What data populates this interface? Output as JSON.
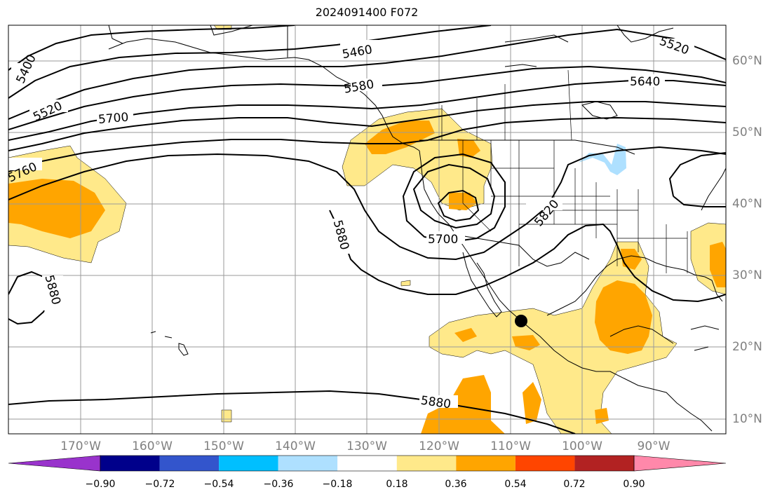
{
  "title": "2024091400 F072",
  "colors": {
    "land": "#ffffff",
    "ocean": "#ffffff",
    "coast": "#000000",
    "grid": "#9a9a9a",
    "contour": "#000000",
    "pos1": "#ffe98a",
    "pos2": "#ffa500",
    "neg1": "#aee0ff"
  },
  "lon_labels": [
    "170°W",
    "160°W",
    "150°W",
    "140°W",
    "130°W",
    "120°W",
    "110°W",
    "100°W",
    "90°W"
  ],
  "lat_labels": [
    "60°N",
    "50°N",
    "40°N",
    "30°N",
    "20°N",
    "10°N"
  ],
  "contour_labels": [
    "5400",
    "5460",
    "5520",
    "5520",
    "5580",
    "5640",
    "5700",
    "5700",
    "5760",
    "5820",
    "5880",
    "5880",
    "5880"
  ],
  "colorbar": {
    "colors": [
      "#9933cc",
      "#00008b",
      "#3355cc",
      "#00bfff",
      "#aee0ff",
      "#ffffff",
      "#ffe98a",
      "#ffa500",
      "#ff4500",
      "#b22222",
      "#ff88aa"
    ],
    "ticks": [
      "−0.90",
      "−0.72",
      "−0.54",
      "−0.36",
      "−0.18",
      "0.18",
      "0.36",
      "0.54",
      "0.72",
      "0.90"
    ]
  },
  "marker": "storm-center-dot"
}
